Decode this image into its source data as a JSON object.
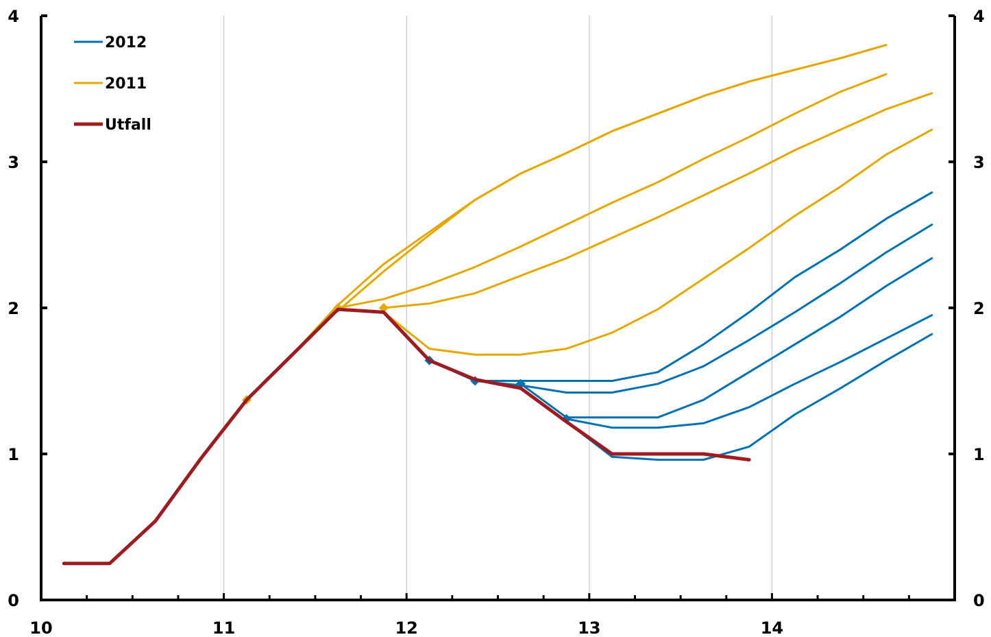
{
  "chart_data": {
    "type": "line",
    "title": "",
    "xlabel": "",
    "ylabel": "",
    "xlim": [
      10,
      15
    ],
    "ylim": [
      0,
      4
    ],
    "x_ticks": [
      10,
      11,
      12,
      13,
      14
    ],
    "x_tick_labels": [
      "10",
      "11",
      "12",
      "13",
      "14"
    ],
    "y_ticks": [
      0,
      1,
      2,
      3,
      4
    ],
    "y_tick_labels": [
      "0",
      "1",
      "2",
      "3",
      "4"
    ],
    "y2_tick_labels": [
      "0",
      "1",
      "2",
      "3",
      "4"
    ],
    "grid": "vertical",
    "legend_position": "top-left",
    "legend": [
      {
        "label": "2012",
        "color": "#0072b2"
      },
      {
        "label": "2011",
        "color": "#e6a800"
      },
      {
        "label": "Utfall",
        "color": "#9e1b20"
      }
    ],
    "series": [
      {
        "name": "2011",
        "group": "2011",
        "color": "#e6a800",
        "x": [
          11.125,
          11.375,
          11.625,
          11.875,
          12.125,
          12.375,
          12.625,
          12.875,
          13.125,
          13.375,
          13.625,
          13.875,
          14.125,
          14.375,
          14.625
        ],
        "y": [
          1.37,
          1.68,
          2.02,
          2.3,
          2.52,
          2.74,
          2.92,
          3.06,
          3.21,
          3.33,
          3.45,
          3.55,
          3.63,
          3.71,
          3.8
        ],
        "start_marker": true
      },
      {
        "name": "2011",
        "group": "2011",
        "color": "#e6a800",
        "x": [
          11.375,
          11.625,
          11.875,
          12.125,
          12.375,
          12.625,
          12.875,
          13.125,
          13.375,
          13.625,
          13.875,
          14.125,
          14.375,
          14.625,
          14.875
        ],
        "y": [
          1.68,
          1.98,
          2.25,
          2.5,
          2.74,
          2.92,
          3.06,
          3.21,
          3.33,
          3.45,
          3.55,
          3.63,
          3.71,
          3.8,
          3.8
        ],
        "start_marker": true,
        "omit": true
      },
      {
        "name": "2011",
        "group": "2011",
        "color": "#e6a800",
        "x": [
          11.625,
          11.875,
          12.125,
          12.375,
          12.625,
          12.875,
          13.125,
          13.375,
          13.625,
          13.875,
          14.125,
          14.375,
          14.625
        ],
        "y": [
          1.98,
          2.25,
          2.5,
          2.74,
          2.92,
          3.06,
          3.21,
          3.33,
          3.45,
          3.55,
          3.63,
          3.71,
          3.8
        ],
        "start_marker": false
      },
      {
        "name": "2011",
        "group": "2011",
        "color": "#e6a800",
        "x": [
          11.625,
          11.875,
          12.125,
          12.375,
          12.625,
          12.875,
          13.125,
          13.375,
          13.625,
          13.875,
          14.125,
          14.375,
          14.625
        ],
        "y": [
          2.0,
          2.06,
          2.16,
          2.28,
          2.42,
          2.57,
          2.72,
          2.86,
          3.02,
          3.17,
          3.33,
          3.48,
          3.6
        ],
        "start_marker": true
      },
      {
        "name": "2011",
        "group": "2011",
        "color": "#e6a800",
        "x": [
          11.875,
          12.125,
          12.375,
          12.625,
          12.875,
          13.125,
          13.375,
          13.625,
          13.875,
          14.125,
          14.375,
          14.625,
          14.875
        ],
        "y": [
          2.0,
          2.03,
          2.1,
          2.22,
          2.34,
          2.48,
          2.62,
          2.77,
          2.92,
          3.08,
          3.22,
          3.36,
          3.47
        ],
        "start_marker": true
      },
      {
        "name": "2011",
        "group": "2011",
        "color": "#e6a800",
        "x": [
          11.875,
          12.125,
          12.375,
          12.625,
          12.875,
          13.125,
          13.375,
          13.625,
          13.875,
          14.125,
          14.375,
          14.625,
          14.875
        ],
        "y": [
          1.97,
          1.72,
          1.68,
          1.68,
          1.72,
          1.83,
          1.99,
          2.2,
          2.41,
          2.63,
          2.83,
          3.05,
          3.22
        ],
        "start_marker": false
      },
      {
        "name": "2012",
        "group": "2012",
        "color": "#0072b2",
        "x": [
          12.125,
          12.375,
          12.625,
          12.875,
          13.125,
          13.375,
          13.625,
          13.875,
          14.125,
          14.375,
          14.625,
          14.875
        ],
        "y": [
          1.64,
          1.5,
          1.5,
          1.5,
          1.5,
          1.56,
          1.75,
          1.97,
          2.21,
          2.4,
          2.61,
          2.79
        ],
        "start_marker": true
      },
      {
        "name": "2012",
        "group": "2012",
        "color": "#0072b2",
        "x": [
          12.375,
          12.625,
          12.875,
          13.125,
          13.375,
          13.625,
          13.875,
          14.125,
          14.375,
          14.625,
          14.875
        ],
        "y": [
          1.5,
          1.47,
          1.42,
          1.42,
          1.48,
          1.6,
          1.78,
          1.97,
          2.17,
          2.38,
          2.57
        ],
        "start_marker": true
      },
      {
        "name": "2012",
        "group": "2012",
        "color": "#0072b2",
        "x": [
          12.625,
          12.875,
          13.125,
          13.375,
          13.625,
          13.875,
          14.125,
          14.375,
          14.625,
          14.875
        ],
        "y": [
          1.48,
          1.25,
          1.25,
          1.25,
          1.37,
          1.56,
          1.75,
          1.94,
          2.15,
          2.34
        ],
        "start_marker": true
      },
      {
        "name": "2012",
        "group": "2012",
        "color": "#0072b2",
        "x": [
          12.875,
          13.125,
          13.375,
          13.625,
          13.875,
          14.125,
          14.375,
          14.625,
          14.875
        ],
        "y": [
          1.24,
          1.18,
          1.18,
          1.21,
          1.32,
          1.48,
          1.63,
          1.79,
          1.95
        ],
        "start_marker": true
      },
      {
        "name": "2012",
        "group": "2012",
        "color": "#0072b2",
        "x": [
          12.875,
          13.125,
          13.375,
          13.625,
          13.875,
          14.125,
          14.375,
          14.625,
          14.875
        ],
        "y": [
          1.22,
          0.98,
          0.96,
          0.96,
          1.05,
          1.27,
          1.45,
          1.64,
          1.82
        ],
        "start_marker": false
      },
      {
        "name": "Utfall",
        "group": "Utfall",
        "color": "#9e1b20",
        "x": [
          10.125,
          10.375,
          10.625,
          10.875,
          11.125,
          11.375,
          11.625,
          11.875,
          12.125,
          12.375,
          12.625,
          12.875,
          13.125,
          13.375,
          13.625,
          13.875
        ],
        "y": [
          0.25,
          0.25,
          0.54,
          0.97,
          1.37,
          1.68,
          1.99,
          1.97,
          1.64,
          1.51,
          1.45,
          1.22,
          1.0,
          1.0,
          1.0,
          0.96
        ],
        "start_marker": false
      }
    ]
  }
}
